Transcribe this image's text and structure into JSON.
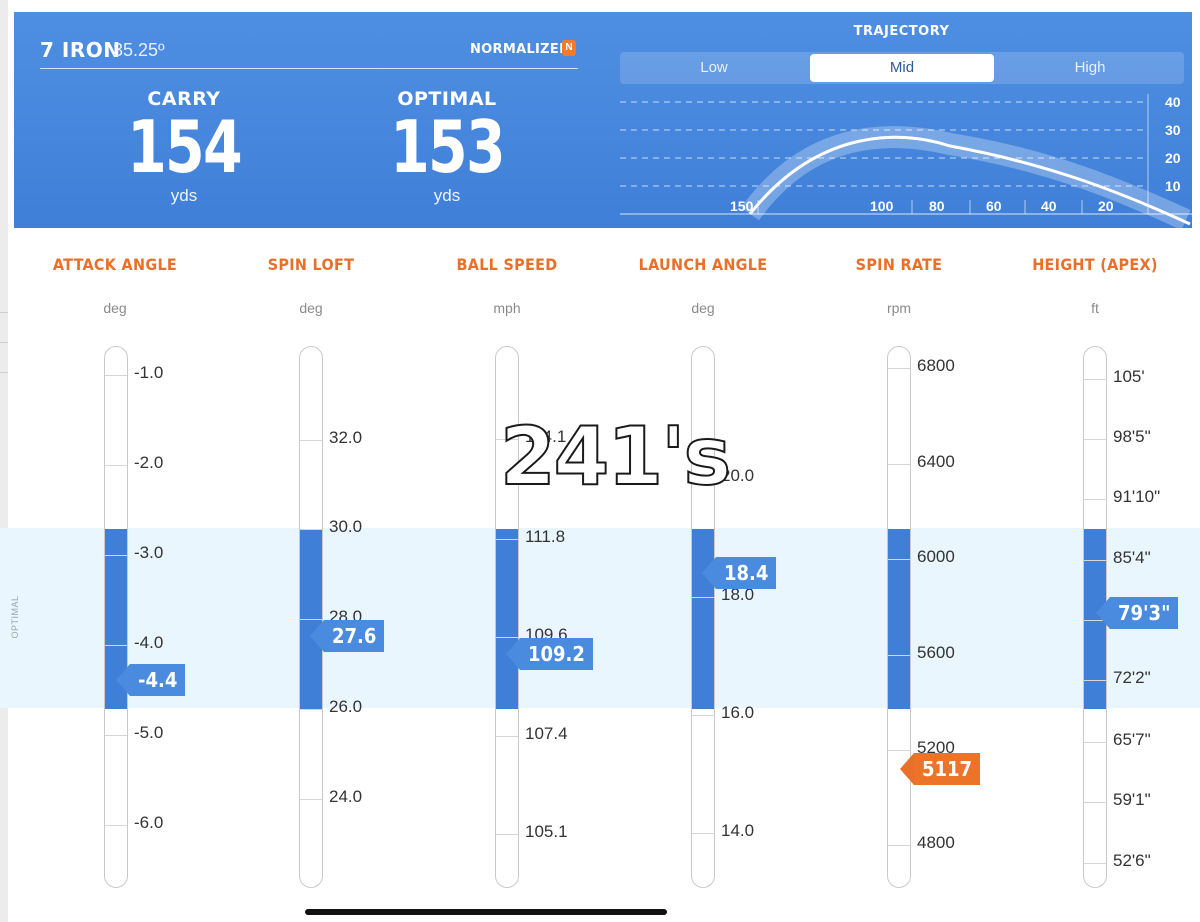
{
  "header": {
    "club": "7 IRON",
    "loft": "35.25º",
    "normalized_label": "NORMALIZED",
    "normalized_badge": "N",
    "carry": {
      "label": "CARRY",
      "value": "154",
      "unit": "yds"
    },
    "optimal": {
      "label": "OPTIMAL",
      "value": "153",
      "unit": "yds"
    }
  },
  "trajectory": {
    "title": "TRAJECTORY",
    "options": [
      "Low",
      "Mid",
      "High"
    ],
    "selected": "Mid",
    "height_ticks": [
      "40",
      "30",
      "20",
      "10"
    ],
    "distance_ticks": [
      "150",
      "100",
      "80",
      "60",
      "40",
      "20"
    ]
  },
  "optimal_band_label": "OPTIMAL",
  "metrics": [
    {
      "title": "ATTACK ANGLE",
      "unit": "deg",
      "ticks": [
        "-1.0",
        "-2.0",
        "-3.0",
        "-4.0",
        "-5.0",
        "-6.0"
      ],
      "value": "-4.4",
      "flag_color": "blue"
    },
    {
      "title": "SPIN LOFT",
      "unit": "deg",
      "ticks": [
        "32.0",
        "30.0",
        "28.0",
        "26.0",
        "24.0"
      ],
      "value": "27.6",
      "flag_color": "blue"
    },
    {
      "title": "BALL SPEED",
      "unit": "mph",
      "ticks": [
        "114.1",
        "111.8",
        "109.6",
        "107.4",
        "105.1"
      ],
      "value": "109.2",
      "flag_color": "blue"
    },
    {
      "title": "LAUNCH ANGLE",
      "unit": "deg",
      "ticks": [
        "20.0",
        "18.0",
        "16.0",
        "14.0"
      ],
      "value": "18.4",
      "flag_color": "blue"
    },
    {
      "title": "SPIN RATE",
      "unit": "rpm",
      "ticks": [
        "6800",
        "6400",
        "6000",
        "5600",
        "5200",
        "4800"
      ],
      "value": "5117",
      "flag_color": "orange"
    },
    {
      "title": "HEIGHT (APEX)",
      "unit": "ft",
      "ticks": [
        "105'",
        "98'5\"",
        "91'10\"",
        "85'4\"",
        "79'3\"",
        "72'2\"",
        "65'7\"",
        "59'1\"",
        "52'6\""
      ],
      "value": "79'3\"",
      "flag_color": "blue"
    }
  ],
  "overlay_text": "241's",
  "colors": {
    "header_blue": "#4f8fe2",
    "accent_orange": "#e8702a",
    "fill_blue": "#3f7fd8",
    "optimal_band": "#eaf6fd"
  }
}
